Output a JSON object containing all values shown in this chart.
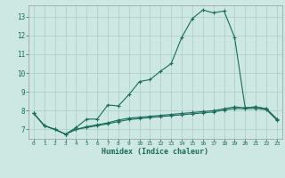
{
  "xlabel": "Humidex (Indice chaleur)",
  "bg_color": "#cde8e2",
  "line_color": "#1a6b5a",
  "grid_color": "#a8cccc",
  "xlim": [
    -0.5,
    23.5
  ],
  "ylim": [
    6.5,
    13.6
  ],
  "yticks": [
    7,
    8,
    9,
    10,
    11,
    12,
    13
  ],
  "xticks": [
    0,
    1,
    2,
    3,
    4,
    5,
    6,
    7,
    8,
    9,
    10,
    11,
    12,
    13,
    14,
    15,
    16,
    17,
    18,
    19,
    20,
    21,
    22,
    23
  ],
  "series1_x": [
    0,
    1,
    2,
    3,
    4,
    5,
    6,
    7,
    8,
    9,
    10,
    11,
    12,
    13,
    14,
    15,
    16,
    17,
    18,
    19,
    20,
    21,
    22,
    23
  ],
  "series1_y": [
    7.85,
    7.2,
    7.0,
    6.75,
    7.1,
    7.55,
    7.55,
    8.3,
    8.25,
    8.85,
    9.55,
    9.65,
    10.1,
    10.5,
    11.9,
    12.9,
    13.35,
    13.2,
    13.3,
    11.9,
    8.15,
    8.2,
    8.1,
    7.55
  ],
  "series2_x": [
    0,
    1,
    2,
    3,
    4,
    5,
    6,
    7,
    8,
    9,
    10,
    11,
    12,
    13,
    14,
    15,
    16,
    17,
    18,
    19,
    20,
    21,
    22,
    23
  ],
  "series2_y": [
    7.85,
    7.2,
    7.0,
    6.75,
    7.0,
    7.15,
    7.25,
    7.35,
    7.5,
    7.6,
    7.65,
    7.7,
    7.75,
    7.8,
    7.85,
    7.9,
    7.95,
    8.0,
    8.1,
    8.2,
    8.15,
    8.2,
    8.1,
    7.55
  ],
  "series3_x": [
    0,
    1,
    2,
    3,
    4,
    5,
    6,
    7,
    8,
    9,
    10,
    11,
    12,
    13,
    14,
    15,
    16,
    17,
    18,
    19,
    20,
    21,
    22,
    23
  ],
  "series3_y": [
    7.85,
    7.2,
    7.0,
    6.75,
    7.0,
    7.1,
    7.2,
    7.3,
    7.42,
    7.52,
    7.58,
    7.63,
    7.68,
    7.73,
    7.78,
    7.83,
    7.88,
    7.93,
    8.03,
    8.12,
    8.1,
    8.12,
    8.05,
    7.5
  ]
}
